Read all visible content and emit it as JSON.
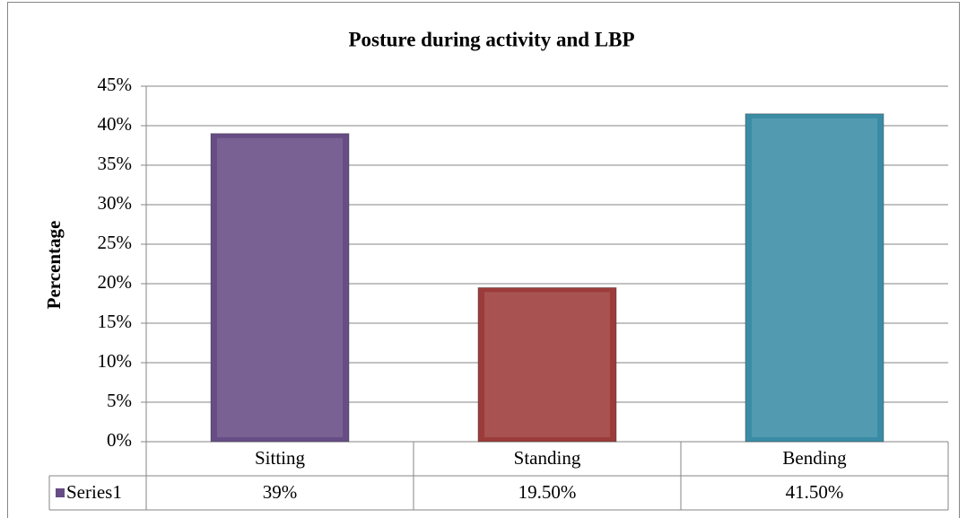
{
  "chart_data": {
    "type": "bar",
    "title": "Posture during activity and LBP",
    "y_label": "Percentage",
    "categories": [
      "Sitting",
      "Standing",
      "Bending"
    ],
    "series": [
      {
        "name": "Series1",
        "color": "#674d85",
        "colors": [
          "#674d85",
          "#9c3c3a",
          "#3a8ca5"
        ],
        "values": [
          39,
          19.5,
          41.5
        ],
        "value_labels": [
          "39%",
          "19.50%",
          "41.50%"
        ]
      }
    ],
    "ylim": [
      0,
      45
    ],
    "yticks": [
      {
        "value": 0,
        "label": "0%"
      },
      {
        "value": 5,
        "label": "5%"
      },
      {
        "value": 10,
        "label": "10%"
      },
      {
        "value": 15,
        "label": "15%"
      },
      {
        "value": 20,
        "label": "20%"
      },
      {
        "value": 25,
        "label": "25%"
      },
      {
        "value": 30,
        "label": "30%"
      },
      {
        "value": 35,
        "label": "35%"
      },
      {
        "value": 40,
        "label": "40%"
      },
      {
        "value": 45,
        "label": "45%"
      }
    ],
    "grid": true,
    "data_table": true
  }
}
